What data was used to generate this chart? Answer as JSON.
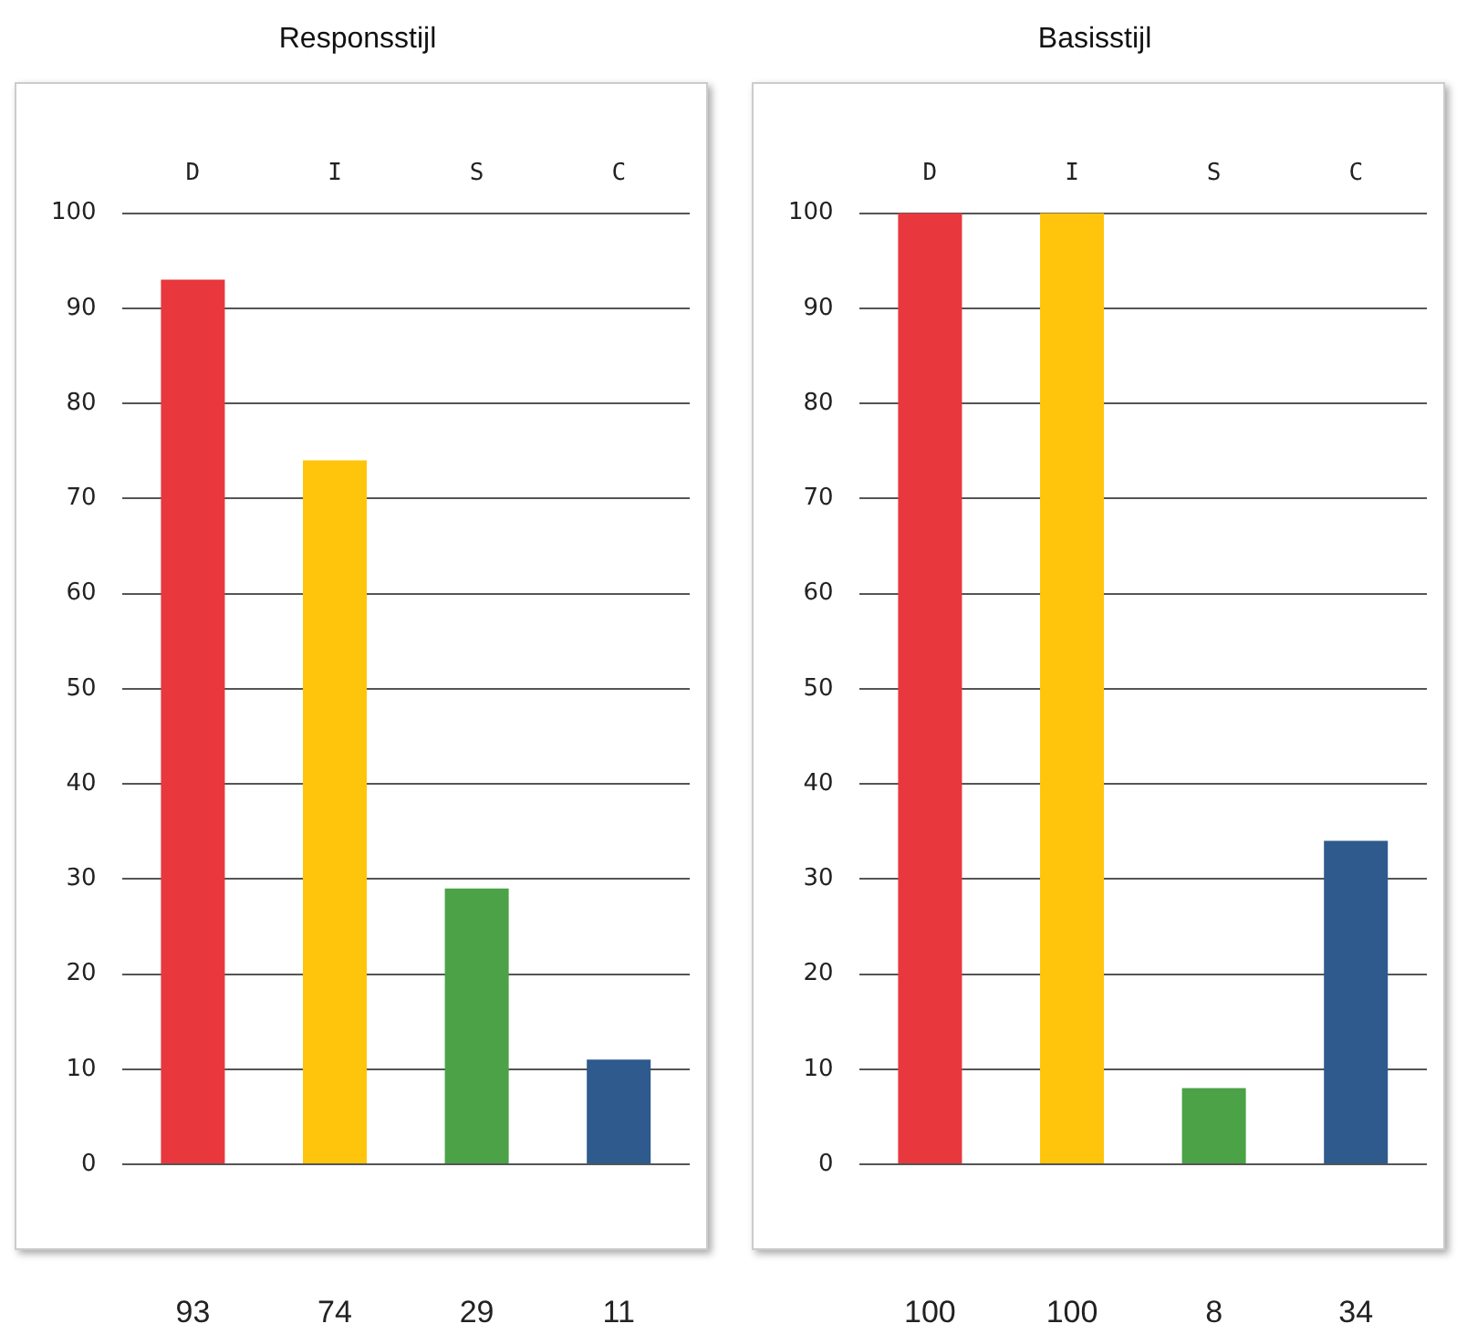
{
  "chart_data": [
    {
      "type": "bar",
      "title": "Responsstijl",
      "categories": [
        "D",
        "I",
        "S",
        "C"
      ],
      "values": [
        93,
        74,
        29,
        11
      ],
      "colors": [
        "#e8383d",
        "#ffc50d",
        "#4ba247",
        "#2e5a8e"
      ],
      "ylim": [
        0,
        100
      ],
      "yticks": [
        0,
        10,
        20,
        30,
        40,
        50,
        60,
        70,
        80,
        90,
        100
      ],
      "grid": "y",
      "data_labels": true
    },
    {
      "type": "bar",
      "title": "Basisstijl",
      "categories": [
        "D",
        "I",
        "S",
        "C"
      ],
      "values": [
        100,
        100,
        8,
        34
      ],
      "colors": [
        "#e8383d",
        "#ffc50d",
        "#4ba247",
        "#2e5a8e"
      ],
      "ylim": [
        0,
        100
      ],
      "yticks": [
        0,
        10,
        20,
        30,
        40,
        50,
        60,
        70,
        80,
        90,
        100
      ],
      "grid": "y",
      "data_labels": true
    }
  ]
}
